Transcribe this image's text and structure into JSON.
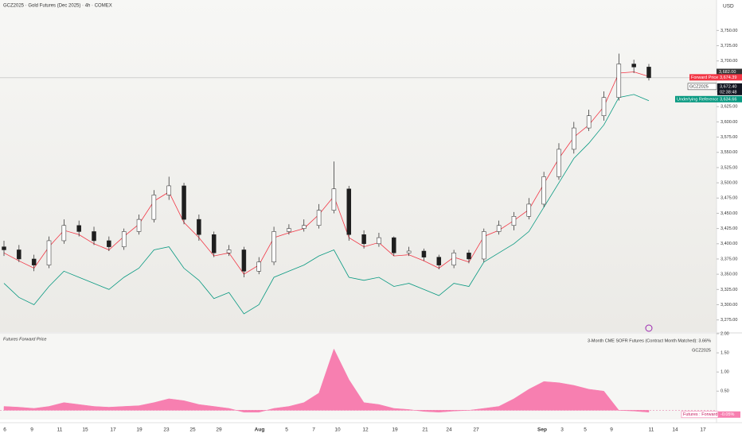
{
  "chart_data": [
    {
      "type": "candlestick",
      "title": "GCZ2025 · Gold Futures (Dec 2025) · 4h · COMEX",
      "currency": "USD",
      "symbol": "GCZ2025",
      "countdown": "02:38:48",
      "open": [
        3395,
        3390,
        3375,
        3365,
        3405,
        3430,
        3420,
        3405,
        3395,
        3420,
        3440,
        3480,
        3495,
        3440,
        3415,
        3385,
        3390,
        3355,
        3370,
        3420,
        3425,
        3430,
        3455,
        3490,
        3415,
        3400,
        3410,
        3385,
        3388,
        3378,
        3365,
        3385,
        3375,
        3420,
        3430,
        3445,
        3465,
        3510,
        3555,
        3590,
        3610,
        3640,
        3695,
        3690
      ],
      "high": [
        3405,
        3398,
        3382,
        3412,
        3440,
        3438,
        3428,
        3412,
        3425,
        3448,
        3488,
        3510,
        3500,
        3448,
        3420,
        3398,
        3395,
        3378,
        3428,
        3432,
        3440,
        3465,
        3535,
        3495,
        3422,
        3418,
        3412,
        3395,
        3392,
        3382,
        3390,
        3390,
        3425,
        3438,
        3452,
        3475,
        3518,
        3565,
        3600,
        3620,
        3650,
        3712,
        3702,
        3695
      ],
      "low": [
        3380,
        3370,
        3355,
        3360,
        3400,
        3412,
        3398,
        3388,
        3390,
        3415,
        3435,
        3472,
        3432,
        3405,
        3378,
        3380,
        3345,
        3350,
        3365,
        3415,
        3420,
        3425,
        3450,
        3405,
        3392,
        3395,
        3380,
        3380,
        3372,
        3358,
        3360,
        3368,
        3370,
        3415,
        3422,
        3440,
        3460,
        3505,
        3548,
        3585,
        3602,
        3635,
        3680,
        3668
      ],
      "close": [
        3390,
        3375,
        3365,
        3405,
        3430,
        3420,
        3405,
        3395,
        3420,
        3440,
        3480,
        3495,
        3440,
        3415,
        3385,
        3390,
        3355,
        3370,
        3420,
        3425,
        3430,
        3455,
        3490,
        3415,
        3400,
        3410,
        3385,
        3388,
        3378,
        3365,
        3385,
        3375,
        3420,
        3430,
        3445,
        3465,
        3510,
        3555,
        3590,
        3610,
        3640,
        3695,
        3690,
        3672.4
      ],
      "close_last_label": "3,672.40",
      "up_color": "#ffffff",
      "down_color": "#1e1e1e",
      "series": [
        {
          "name": "Forward Price",
          "color": "#f23645",
          "values": [
            3385,
            3372,
            3360,
            3395,
            3422,
            3415,
            3400,
            3390,
            3412,
            3432,
            3470,
            3485,
            3435,
            3410,
            3380,
            3385,
            3350,
            3365,
            3410,
            3418,
            3425,
            3448,
            3478,
            3410,
            3395,
            3402,
            3380,
            3382,
            3372,
            3360,
            3378,
            3370,
            3412,
            3422,
            3438,
            3456,
            3498,
            3540,
            3575,
            3595,
            3625,
            3680,
            3682,
            3674.39
          ],
          "last_label": "3,674.39"
        },
        {
          "name": "Underlying Reference",
          "color": "#089981",
          "values": [
            3335,
            3312,
            3300,
            3330,
            3355,
            3345,
            3335,
            3325,
            3345,
            3360,
            3390,
            3395,
            3360,
            3340,
            3310,
            3320,
            3285,
            3300,
            3345,
            3355,
            3365,
            3380,
            3390,
            3345,
            3340,
            3345,
            3330,
            3335,
            3325,
            3315,
            3335,
            3330,
            3370,
            3385,
            3400,
            3420,
            3460,
            3500,
            3540,
            3565,
            3595,
            3640,
            3645,
            3634.66
          ],
          "last_label": "3,634.66"
        }
      ],
      "price_labels": [
        {
          "value": 3682,
          "label": "3,682.00"
        }
      ],
      "ylim": [
        3255,
        3800
      ],
      "yticks": [
        {
          "value": 3750,
          "label": "3,750.00"
        },
        {
          "value": 3725,
          "label": "3,725.00"
        },
        {
          "value": 3700,
          "label": "3,700.00"
        },
        {
          "value": 3675,
          "label": "3,675.00"
        },
        {
          "value": 3650,
          "label": "3,650.00"
        },
        {
          "value": 3625,
          "label": "3,625.00"
        },
        {
          "value": 3600,
          "label": "3,600.00"
        },
        {
          "value": 3575,
          "label": "3,575.00"
        },
        {
          "value": 3550,
          "label": "3,550.00"
        },
        {
          "value": 3525,
          "label": "3,525.00"
        },
        {
          "value": 3500,
          "label": "3,500.00"
        },
        {
          "value": 3475,
          "label": "3,475.00"
        },
        {
          "value": 3450,
          "label": "3,450.00"
        },
        {
          "value": 3425,
          "label": "3,425.00"
        },
        {
          "value": 3400,
          "label": "3,400.00"
        },
        {
          "value": 3375,
          "label": "3,375.00"
        },
        {
          "value": 3350,
          "label": "3,350.00"
        },
        {
          "value": 3325,
          "label": "3,325.00"
        },
        {
          "value": 3300,
          "label": "3,300.00"
        },
        {
          "value": 3275,
          "label": "3,275.00"
        }
      ],
      "xtick_labels": [
        "6",
        "9",
        "11",
        "15",
        "17",
        "19",
        "23",
        "25",
        "29",
        "Aug",
        "5",
        "7",
        "10",
        "12",
        "19",
        "21",
        "24",
        "27",
        "Sep",
        "3",
        "5",
        "9",
        "11",
        "14",
        "17"
      ]
    },
    {
      "type": "area",
      "title": "Futures Forward Price",
      "legend": "3-Month CME SOFR Futures (Contract Month Matched): 3.66%",
      "symbol": "GCZ2025",
      "series": [
        {
          "name": "Futures : Forward",
          "color": "#f77fb0",
          "values": [
            0.1,
            0.08,
            0.05,
            0.1,
            0.2,
            0.15,
            0.1,
            0.08,
            0.1,
            0.12,
            0.2,
            0.3,
            0.25,
            0.15,
            0.1,
            0.05,
            -0.05,
            -0.05,
            0.05,
            0.1,
            0.2,
            0.45,
            1.6,
            0.8,
            0.2,
            0.15,
            0.05,
            0.02,
            -0.03,
            -0.05,
            -0.02,
            0.0,
            0.05,
            0.1,
            0.3,
            0.55,
            0.75,
            0.72,
            0.65,
            0.55,
            0.5,
            0.0,
            -0.02,
            -0.05
          ],
          "last_label": "-0.05%"
        }
      ],
      "ylim": [
        -0.2,
        2.0
      ],
      "yticks": [
        {
          "value": 2,
          "label": "2.00"
        },
        {
          "value": 1.5,
          "label": "1.50"
        },
        {
          "value": 1,
          "label": "1.00"
        },
        {
          "value": 0.5,
          "label": "0.50"
        }
      ]
    }
  ]
}
